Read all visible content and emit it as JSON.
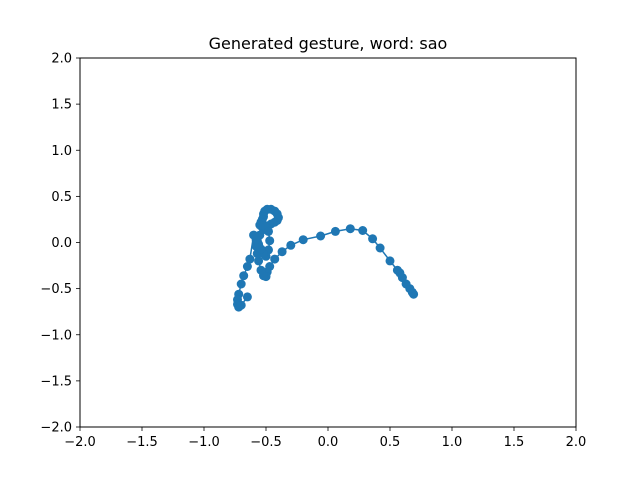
{
  "chart_data": {
    "type": "line",
    "title": "Generated gesture, word: sao",
    "xlabel": "",
    "ylabel": "",
    "xlim": [
      -2.0,
      2.0
    ],
    "ylim": [
      -2.0,
      2.0
    ],
    "xticks": [
      -2.0,
      -1.5,
      -1.0,
      -0.5,
      0.0,
      0.5,
      1.0,
      1.5,
      2.0
    ],
    "yticks": [
      -2.0,
      -1.5,
      -1.0,
      -0.5,
      0.0,
      0.5,
      1.0,
      1.5,
      2.0
    ],
    "xtick_labels": [
      "−2.0",
      "−1.5",
      "−1.0",
      "−0.5",
      "0.0",
      "0.5",
      "1.0",
      "1.5",
      "2.0"
    ],
    "ytick_labels": [
      "−2.0",
      "−1.5",
      "−1.0",
      "−0.5",
      "0.0",
      "0.5",
      "1.0",
      "1.5",
      "2.0"
    ],
    "grid": false,
    "marker": "circle",
    "color": "#1f77b4",
    "series": [
      {
        "x": [
          0.69,
          0.68,
          0.66,
          0.63,
          0.6,
          0.58,
          0.56,
          0.5,
          0.42,
          0.36,
          0.28,
          0.18,
          0.06,
          -0.06,
          -0.2,
          -0.3,
          -0.37,
          -0.43,
          -0.47,
          -0.49,
          -0.5,
          -0.52,
          -0.54,
          -0.56,
          -0.57,
          -0.58,
          -0.57,
          -0.55,
          -0.52,
          -0.49,
          -0.46,
          -0.43,
          -0.41,
          -0.4,
          -0.41,
          -0.43,
          -0.46,
          -0.49,
          -0.51,
          -0.52,
          -0.52,
          -0.53,
          -0.54,
          -0.55,
          -0.54,
          -0.52,
          -0.5,
          -0.48,
          -0.47,
          -0.48,
          -0.5,
          -0.52,
          -0.54,
          -0.56,
          -0.58,
          -0.6,
          -0.63,
          -0.65,
          -0.68,
          -0.7,
          -0.72,
          -0.73,
          -0.73,
          -0.72,
          -0.7,
          -0.65
        ],
        "y": [
          -0.56,
          -0.54,
          -0.5,
          -0.45,
          -0.38,
          -0.33,
          -0.3,
          -0.2,
          -0.06,
          0.04,
          0.13,
          0.15,
          0.12,
          0.07,
          0.03,
          -0.03,
          -0.1,
          -0.18,
          -0.26,
          -0.32,
          -0.37,
          -0.36,
          -0.3,
          -0.2,
          -0.12,
          -0.04,
          0.02,
          0.08,
          0.14,
          0.18,
          0.2,
          0.22,
          0.24,
          0.27,
          0.31,
          0.34,
          0.36,
          0.36,
          0.34,
          0.31,
          0.28,
          0.25,
          0.22,
          0.19,
          0.18,
          0.18,
          0.17,
          0.12,
          0.02,
          -0.08,
          -0.15,
          -0.12,
          -0.07,
          -0.02,
          0.03,
          0.08,
          -0.18,
          -0.26,
          -0.36,
          -0.45,
          -0.56,
          -0.62,
          -0.67,
          -0.7,
          -0.68,
          -0.59
        ]
      }
    ]
  }
}
